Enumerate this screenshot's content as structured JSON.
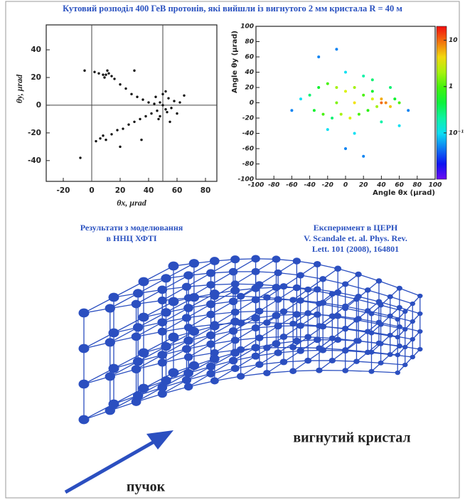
{
  "title": "Кутовий розподіл 400 ГеВ протонів, які вийшли із вигнутого 2 мм кристала R = 40 м",
  "chart_data": [
    {
      "type": "scatter",
      "xlabel": "θx, μrad",
      "ylabel": "θy, μrad",
      "color": "#111111",
      "xlim": [
        -32,
        88
      ],
      "ylim": [
        -55,
        58
      ],
      "xticks": [
        -20,
        0,
        20,
        40,
        60,
        80
      ],
      "yticks": [
        -40,
        -20,
        0,
        20,
        40
      ],
      "ref_lines": {
        "x": [
          0,
          50
        ],
        "y": [
          0
        ]
      },
      "x": [
        -5,
        2,
        5,
        8,
        10,
        12,
        14,
        11,
        9,
        16,
        20,
        24,
        28,
        32,
        36,
        40,
        44,
        3,
        6,
        8,
        10,
        14,
        18,
        22,
        26,
        30,
        34,
        38,
        42,
        46,
        48,
        50,
        52,
        54,
        56,
        50,
        48,
        52,
        55,
        58,
        60,
        45,
        47,
        53,
        62,
        -8,
        20,
        30,
        35,
        65
      ],
      "y": [
        25,
        24,
        23,
        22,
        22,
        23,
        21,
        25,
        20,
        19,
        15,
        12,
        8,
        6,
        4,
        2,
        1,
        -26,
        -24,
        -22,
        -25,
        -21,
        -18,
        -17,
        -14,
        -12,
        -10,
        -8,
        -6,
        -4,
        2,
        0,
        -3,
        5,
        -2,
        8,
        -8,
        10,
        -12,
        3,
        -6,
        6,
        -10,
        -5,
        2,
        -38,
        -30,
        25,
        -25,
        7
      ]
    },
    {
      "type": "scatter",
      "xlabel": "Angle θx (μrad)",
      "ylabel": "Angle θy (μrad)",
      "xlim": [
        -100,
        100
      ],
      "ylim": [
        -100,
        100
      ],
      "xticks": [
        -100,
        -80,
        -60,
        -40,
        -20,
        0,
        20,
        40,
        60,
        80,
        100
      ],
      "yticks": [
        -100,
        -80,
        -60,
        -40,
        -20,
        0,
        20,
        40,
        60,
        80,
        100
      ],
      "log_colorbar": true,
      "zlim": [
        0.01,
        20
      ],
      "colorbar_ticks": [
        10,
        1,
        {
          "value": 0.1,
          "label": "10⁻¹"
        }
      ],
      "x": [
        -40,
        -30,
        -20,
        -10,
        0,
        10,
        20,
        30,
        40,
        50,
        60,
        -35,
        -25,
        -15,
        -5,
        5,
        15,
        25,
        35,
        45,
        55,
        0,
        10,
        20,
        -20,
        -10,
        30,
        40,
        50,
        -50,
        -60,
        70,
        0,
        20,
        -30,
        10,
        40,
        60,
        -10,
        30
      ],
      "y": [
        10,
        20,
        25,
        20,
        15,
        20,
        10,
        5,
        0,
        -5,
        0,
        -10,
        -15,
        -20,
        -15,
        -20,
        -15,
        -10,
        -5,
        0,
        5,
        40,
        -40,
        35,
        -35,
        0,
        30,
        -25,
        20,
        5,
        -10,
        -10,
        -60,
        -70,
        60,
        0,
        5,
        -30,
        70,
        15
      ],
      "z": [
        0.3,
        0.5,
        1,
        2,
        3,
        2,
        1,
        3,
        10,
        5,
        1,
        0.5,
        1,
        0.3,
        2,
        3,
        1,
        0.8,
        2,
        8,
        0.5,
        0.1,
        0.1,
        0.2,
        0.1,
        1.5,
        0.3,
        0.2,
        0.3,
        0.1,
        0.05,
        0.05,
        0.05,
        0.05,
        0.05,
        4,
        6,
        0.1,
        0.05,
        0.5
      ]
    }
  ],
  "captions": {
    "left": [
      "Результати з моделювання",
      "в ННЦ ХФТІ"
    ],
    "right": [
      "Експеримент в ЦЕРН",
      "V. Scandale et. al. Phys. Rev.",
      "Lett. 101 (2008), 164801"
    ]
  },
  "diagram": {
    "crystal": "вигнутий кристал",
    "beam": "пучок"
  }
}
